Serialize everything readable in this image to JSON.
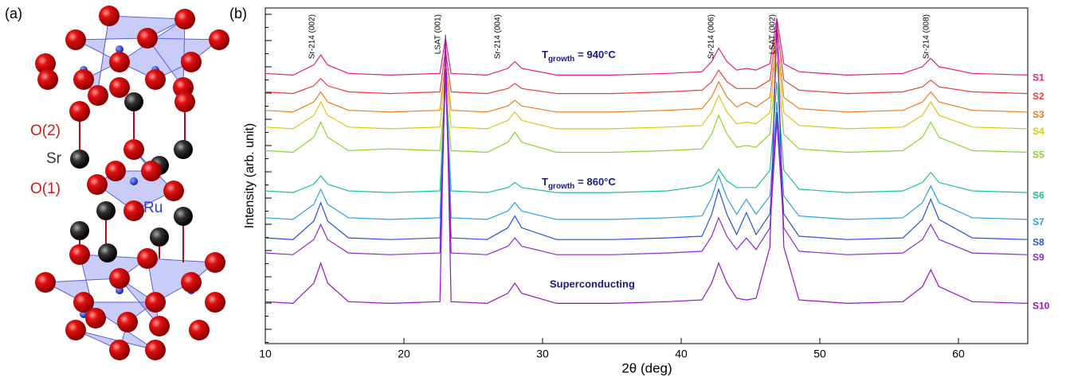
{
  "structure": {
    "panel_label": "(a)",
    "labels": [
      "O(2)",
      "Sr",
      "O(1)",
      "Ru"
    ]
  },
  "chart_data": {
    "type": "line",
    "panel_label": "(b)",
    "xlabel": "2θ (deg)",
    "ylabel": "Intensity  (arb. unit)",
    "xlim": [
      10,
      65
    ],
    "xticks": [
      10,
      20,
      30,
      40,
      50,
      60
    ],
    "ylim": [
      0,
      100
    ],
    "annotations": [
      "Sr-214 (002)",
      "LSAT (001)",
      "Sr-214 (004)",
      "Sr-214 (006)",
      "LSAT (002)",
      "Sr-214 (008)"
    ],
    "group_labels": [
      {
        "main": "T",
        "sub": "growth",
        "rest": "= 940°C"
      },
      {
        "main": "T",
        "sub": "growth",
        "rest": "= 860°C"
      },
      {
        "text": "Superconducting"
      }
    ],
    "x": [
      10,
      12,
      13.5,
      14,
      14.5,
      16,
      19,
      22.6,
      23,
      23.4,
      26,
      27.5,
      28,
      28.5,
      31,
      35,
      39,
      41.5,
      42.2,
      42.7,
      43.3,
      44,
      44.7,
      45.4,
      46.4,
      46.9,
      47.4,
      48.5,
      52,
      56,
      57.4,
      58,
      58.6,
      61,
      65
    ],
    "series": [
      {
        "name": "S1",
        "color": "#e0217a",
        "values": [
          80.5,
          80,
          83,
          86,
          83,
          80.5,
          80,
          80.5,
          91,
          80.5,
          80,
          82,
          84,
          82,
          80,
          80,
          80.5,
          81,
          84,
          88,
          84,
          81.5,
          82,
          81.5,
          83.4,
          97,
          83.4,
          81,
          80,
          80.5,
          82.5,
          85,
          82.5,
          80.5,
          80
        ]
      },
      {
        "name": "S2",
        "color": "#e8413f",
        "values": [
          75,
          74.5,
          76.8,
          79,
          76.8,
          75,
          74.5,
          75,
          87.5,
          75,
          74.5,
          76,
          77.5,
          76,
          74.5,
          74.5,
          75,
          75.5,
          78,
          81.5,
          78,
          76,
          76,
          76,
          78.5,
          94.5,
          78.5,
          75.5,
          74.5,
          75,
          76.5,
          78.5,
          76.5,
          75,
          74.5
        ]
      },
      {
        "name": "S3",
        "color": "#f07a1a",
        "values": [
          69.5,
          69,
          72,
          75,
          72,
          69.5,
          69,
          69.5,
          84,
          69.5,
          69,
          70.8,
          72.5,
          70.8,
          69,
          69,
          69.5,
          70,
          73.5,
          78,
          73.5,
          70.5,
          72,
          70.5,
          73.4,
          91,
          73.4,
          70,
          69,
          69.5,
          72,
          75,
          72,
          69.5,
          69
        ]
      },
      {
        "name": "S4",
        "color": "#d8c61a",
        "values": [
          64.5,
          64,
          68,
          72,
          68,
          64.5,
          64,
          64.5,
          81,
          64.5,
          64,
          66.5,
          69,
          66.5,
          64,
          64,
          64.5,
          65,
          69,
          74,
          69,
          65.5,
          66,
          65.5,
          68.8,
          88,
          68.8,
          65,
          64,
          64.5,
          68,
          72,
          68,
          64.5,
          64
        ]
      },
      {
        "name": "S5",
        "color": "#8fd32a",
        "values": [
          57.5,
          57,
          61.5,
          66,
          61.5,
          57.5,
          58,
          57.5,
          76,
          57.5,
          57,
          60,
          63,
          60,
          57,
          57,
          57.5,
          58,
          62.5,
          68,
          62.5,
          58.5,
          59,
          58.5,
          62.4,
          84,
          62.4,
          58,
          57,
          57.5,
          61.5,
          66,
          61.5,
          57.5,
          57
        ]
      },
      {
        "name": "S6",
        "color": "#1ec48a",
        "values": [
          45.5,
          45,
          47.5,
          50,
          47.5,
          45.5,
          45,
          45.5,
          80,
          45.5,
          45,
          46.5,
          48,
          46.5,
          45,
          45,
          45.5,
          47,
          48.5,
          52,
          48.5,
          46.5,
          46.5,
          46.5,
          51.6,
          78,
          51.6,
          46,
          45,
          45.5,
          48,
          51,
          48,
          45.5,
          45
        ]
      },
      {
        "name": "S7",
        "color": "#2a9fe0",
        "values": [
          37.5,
          37,
          41.5,
          46,
          41.5,
          37.5,
          37,
          37.5,
          82,
          37.5,
          37,
          39.5,
          42,
          39.5,
          37,
          37,
          37.5,
          38,
          43.5,
          50,
          43.5,
          38.5,
          43,
          38.5,
          44,
          72,
          44,
          38,
          37,
          37.5,
          42,
          47,
          42,
          37.5,
          37
        ]
      },
      {
        "name": "S8",
        "color": "#2a4fd8",
        "values": [
          31.5,
          31,
          36.5,
          42,
          36.5,
          31.5,
          31,
          31.5,
          81,
          31.5,
          31,
          34.5,
          38,
          34.5,
          31,
          31,
          31.5,
          32,
          38.5,
          46,
          38.5,
          32.5,
          39,
          32.5,
          38.6,
          69,
          38.6,
          32,
          31,
          31.5,
          37,
          43,
          37,
          31.5,
          31
        ]
      },
      {
        "name": "S9",
        "color": "#8a2ad0",
        "values": [
          27,
          26.5,
          31,
          35.5,
          31,
          27,
          26.5,
          27,
          81.5,
          27,
          26.5,
          29,
          31.5,
          29,
          26.5,
          26.5,
          27,
          27.5,
          32,
          37.5,
          32,
          28,
          31.5,
          28,
          34.5,
          66.5,
          34.5,
          27.5,
          26.5,
          27,
          31,
          35.5,
          31,
          27,
          26.5
        ]
      },
      {
        "name": "S10",
        "color": "#9a10c0",
        "values": [
          12.5,
          12,
          18,
          24,
          18,
          12.5,
          12,
          12.5,
          92,
          12.5,
          12,
          15,
          18,
          15,
          12,
          12,
          12.5,
          13,
          18,
          24,
          18,
          13.5,
          13,
          13.5,
          28.8,
          96,
          28.8,
          13,
          12,
          12.5,
          17,
          22,
          17,
          12.5,
          12
        ]
      }
    ]
  }
}
